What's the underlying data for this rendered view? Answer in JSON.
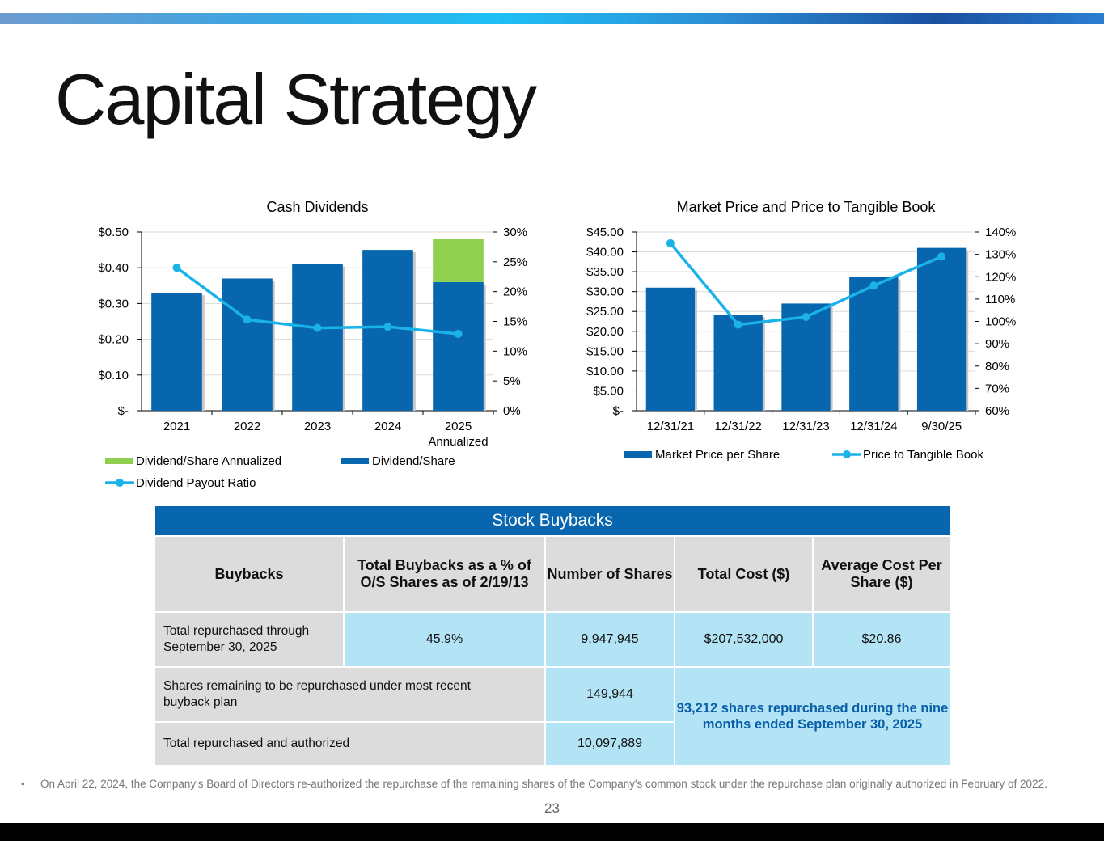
{
  "page": {
    "title": "Capital Strategy",
    "page_number": "23",
    "footnote_bullet": "•",
    "footnote": "On April 22, 2024, the Company's Board of Directors re-authorized the repurchase of the remaining shares of the Company's common stock under the repurchase plan originally authorized in February of 2022."
  },
  "colors": {
    "dark_blue": "#0766ae",
    "light_blue": "#1ab2e8",
    "green": "#8fd14f",
    "gray": "#dcdcdc",
    "pale_blue": "#b3e4f5"
  },
  "chart_data": [
    {
      "type": "bar",
      "title": "Cash Dividends",
      "categories": [
        "2021",
        "2022",
        "2023",
        "2024",
        "2025\nAnnualized"
      ],
      "series": [
        {
          "name": "Dividend/Share",
          "type": "bar",
          "axis": "left",
          "values": [
            0.33,
            0.37,
            0.41,
            0.45,
            0.36
          ]
        },
        {
          "name": "Dividend/Share Annualized",
          "type": "bar-stacked",
          "axis": "left",
          "values": [
            0,
            0,
            0,
            0,
            0.12
          ]
        },
        {
          "name": "Dividend Payout Ratio",
          "type": "line",
          "axis": "right",
          "values": [
            24,
            15.3,
            13.9,
            14.1,
            12.9
          ]
        }
      ],
      "ylim": [
        0,
        0.5
      ],
      "y_ticks": [
        "$-",
        "$0.10",
        "$0.20",
        "$0.30",
        "$0.40",
        "$0.50"
      ],
      "y2lim": [
        0,
        30
      ],
      "y2_ticks": [
        "0%",
        "5%",
        "10%",
        "15%",
        "20%",
        "25%",
        "30%"
      ],
      "legend": [
        "Dividend/Share Annualized",
        "Dividend/Share",
        "Dividend Payout Ratio"
      ],
      "legend_position": "bottom",
      "xlabel": "",
      "ylabel": ""
    },
    {
      "type": "bar",
      "title": "Market Price and Price to Tangible Book",
      "categories": [
        "12/31/21",
        "12/31/22",
        "12/31/23",
        "12/31/24",
        "9/30/25"
      ],
      "series": [
        {
          "name": "Market Price per Share",
          "type": "bar",
          "axis": "left",
          "values": [
            31.0,
            24.2,
            27.0,
            33.7,
            41.0
          ]
        },
        {
          "name": "Price to Tangible Book",
          "type": "line",
          "axis": "right",
          "values": [
            135,
            98.5,
            102,
            116,
            129
          ]
        }
      ],
      "ylim": [
        0,
        45
      ],
      "y_ticks": [
        "$-",
        "$5.00",
        "$10.00",
        "$15.00",
        "$20.00",
        "$25.00",
        "$30.00",
        "$35.00",
        "$40.00",
        "$45.00"
      ],
      "y2lim": [
        60,
        140
      ],
      "y2_ticks": [
        "60%",
        "70%",
        "80%",
        "90%",
        "100%",
        "110%",
        "120%",
        "130%",
        "140%"
      ],
      "legend": [
        "Market Price per Share",
        "Price to Tangible Book"
      ],
      "legend_position": "bottom",
      "xlabel": "",
      "ylabel": ""
    }
  ],
  "buybacks": {
    "title": "Stock Buybacks",
    "headers": [
      "Buybacks",
      "Total Buybacks as a % of O/S Shares as of 2/19/13",
      "Number of Shares",
      "Total Cost ($)",
      "Average Cost Per Share ($)"
    ],
    "row1": {
      "label": "Total repurchased through September 30, 2025",
      "pct": "45.9%",
      "shares": "9,947,945",
      "cost": "$207,532,000",
      "avg": "$20.86"
    },
    "row2": {
      "label": "Shares remaining to be repurchased under most recent buyback plan",
      "shares": "149,944"
    },
    "row3": {
      "label": "Total repurchased and authorized",
      "shares": "10,097,889"
    },
    "note": "93,212 shares repurchased during the nine months ended September 30, 2025"
  }
}
